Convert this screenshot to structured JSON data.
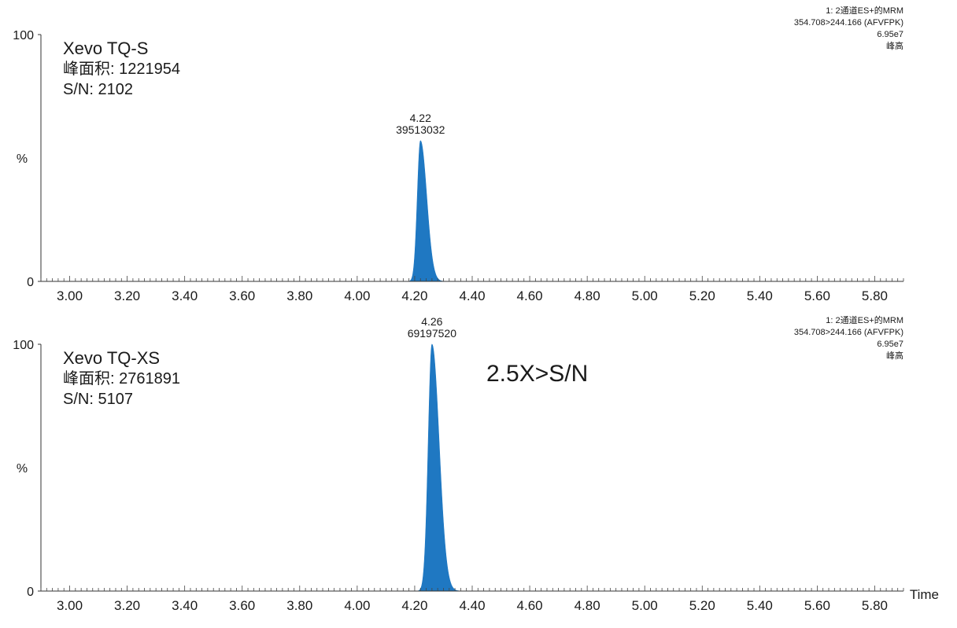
{
  "chart_data": [
    {
      "type": "area",
      "instrument": "Xevo TQ-S",
      "peak_area_line": "峰面积: 1221954",
      "sn_line": "S/N: 2102",
      "meta": [
        "1: 2通道ES+的MRM",
        "354.708>244.166 (AFVFPK)",
        "6.95e7",
        "峰高"
      ],
      "ylabel": "%",
      "ylim": [
        0,
        100
      ],
      "xlim": [
        2.9,
        5.9
      ],
      "y_ticks": [
        "0",
        "100"
      ],
      "x_ticks": [
        "3.00",
        "3.20",
        "3.40",
        "3.60",
        "3.80",
        "4.00",
        "4.20",
        "4.40",
        "4.60",
        "4.80",
        "5.00",
        "5.20",
        "5.40",
        "5.60",
        "5.80"
      ],
      "peak": {
        "rt": 4.22,
        "rt_label": "4.22",
        "height_label": "39513032",
        "relative_height": 57,
        "width_sigma": 0.011,
        "tail": 0.018
      },
      "fill_color": "#1f78c2",
      "callout": "",
      "xlabel": ""
    },
    {
      "type": "area",
      "instrument": "Xevo TQ-XS",
      "peak_area_line": "峰面积: 2761891",
      "sn_line": "S/N: 5107",
      "meta": [
        "1: 2通道ES+的MRM",
        "354.708>244.166 (AFVFPK)",
        "6.95e7",
        "峰高"
      ],
      "ylabel": "%",
      "ylim": [
        0,
        100
      ],
      "xlim": [
        2.9,
        5.9
      ],
      "y_ticks": [
        "0",
        "100"
      ],
      "x_ticks": [
        "3.00",
        "3.20",
        "3.40",
        "3.60",
        "3.80",
        "4.00",
        "4.20",
        "4.40",
        "4.60",
        "4.80",
        "5.00",
        "5.20",
        "5.40",
        "5.60",
        "5.80"
      ],
      "peak": {
        "rt": 4.26,
        "rt_label": "4.26",
        "height_label": "69197520",
        "relative_height": 100,
        "width_sigma": 0.013,
        "tail": 0.02
      },
      "fill_color": "#1f78c2",
      "callout": "2.5X>S/N",
      "xlabel": "Time"
    }
  ]
}
